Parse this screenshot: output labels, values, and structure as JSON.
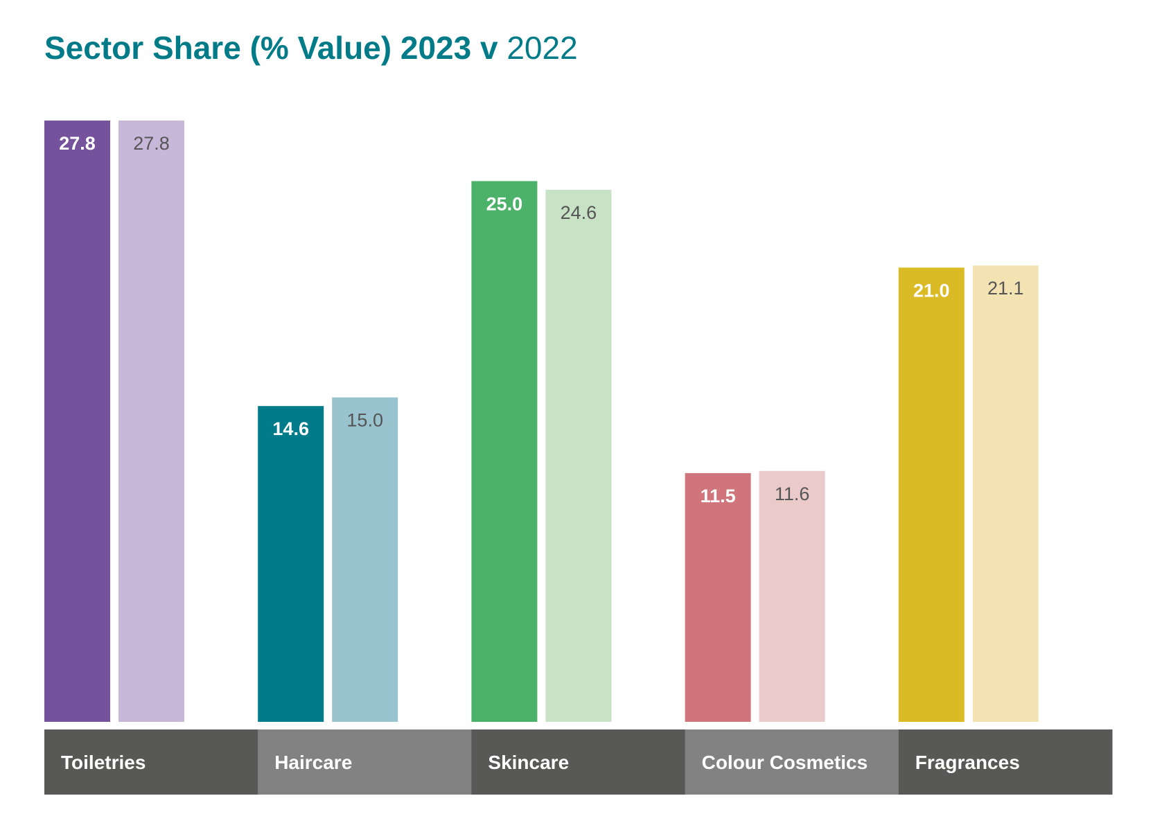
{
  "chart_data": {
    "type": "bar",
    "title": "Sector Share (% Value) 2023 v",
    "subtitle": "2022",
    "xlabel": "",
    "ylabel": "",
    "ylim": [
      0,
      27.8
    ],
    "grid": false,
    "legend": "none",
    "categories": [
      "Toiletries",
      "Haircare",
      "Skincare",
      "Colour Cosmetics",
      "Fragrances"
    ],
    "series": [
      {
        "values": [
          27.8,
          14.6,
          25.0,
          11.5,
          21.0
        ]
      },
      {
        "values": [
          27.8,
          15.0,
          24.6,
          11.6,
          21.1
        ]
      }
    ],
    "data_labels": [
      [
        "27.8",
        "14.6",
        "25.0",
        "11.5",
        "21.0"
      ],
      [
        "27.8",
        "15.0",
        "24.6",
        "11.6",
        "21.1"
      ]
    ],
    "colors": {
      "current": [
        "#74529c",
        "#007b8a",
        "#4db269",
        "#cf757b",
        "#dbbb25"
      ],
      "previous": [
        "#c7b8da",
        "#98c3cf",
        "#c8e2c6",
        "#ebcbca",
        "#f3e3b3"
      ],
      "category_band": [
        "#585856",
        "#828282",
        "#585856",
        "#828282",
        "#585856"
      ],
      "title": "#027b89"
    }
  }
}
